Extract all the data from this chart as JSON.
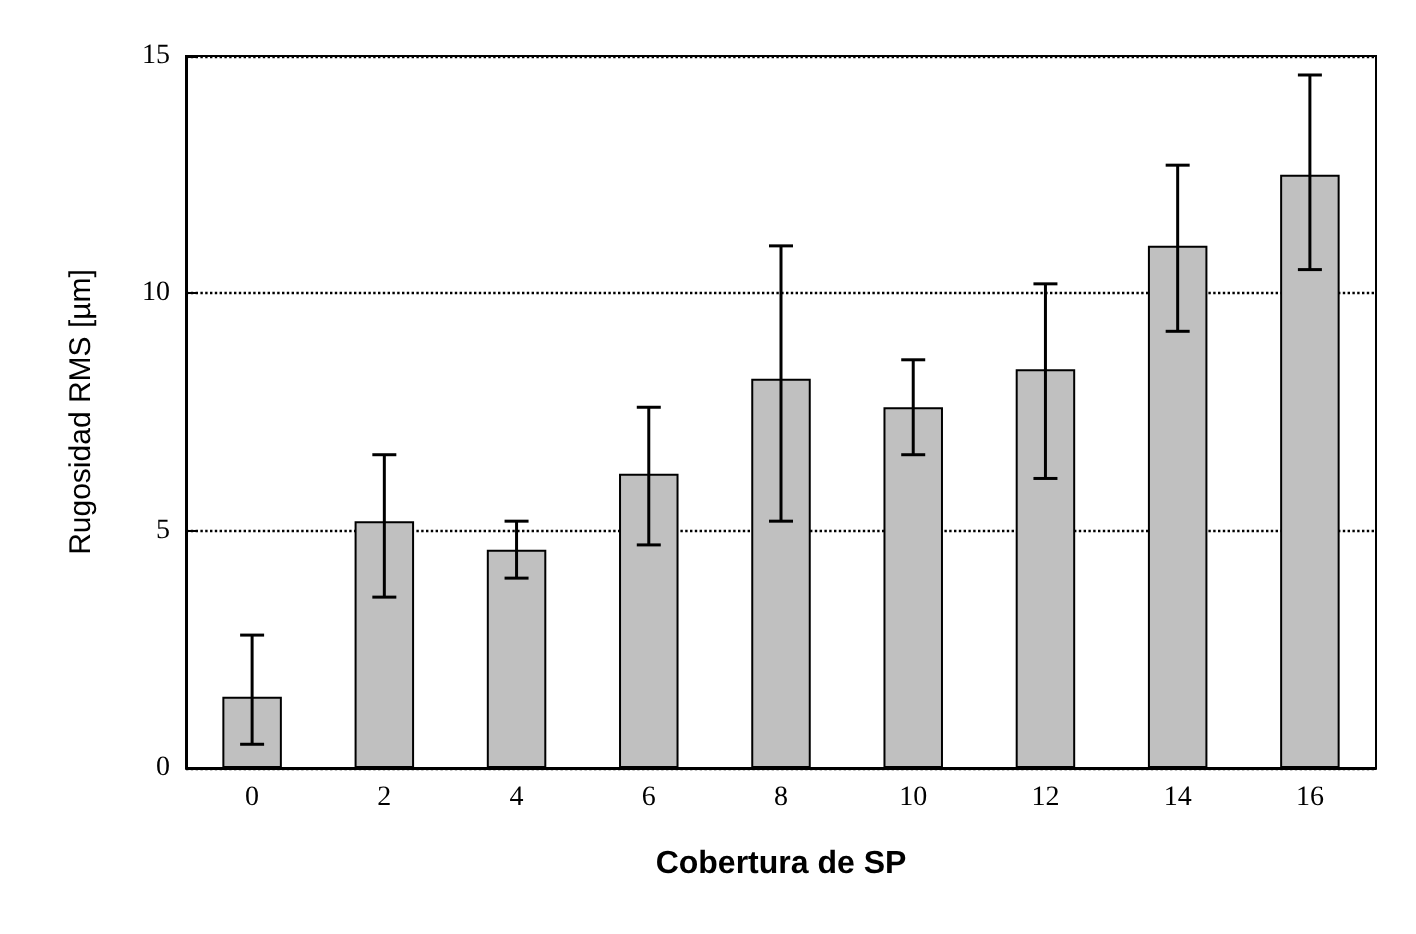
{
  "chart_data": {
    "type": "bar",
    "xlabel": "Cobertura de SP",
    "ylabel": "Rugosidad RMS [µm]",
    "categories": [
      "0",
      "2",
      "4",
      "6",
      "8",
      "10",
      "12",
      "14",
      "16"
    ],
    "values": [
      1.5,
      5.2,
      4.6,
      6.2,
      8.2,
      7.6,
      8.4,
      11.0,
      12.5
    ],
    "errors": [
      [
        0.5,
        2.8
      ],
      [
        3.6,
        6.6
      ],
      [
        4.0,
        5.2
      ],
      [
        4.7,
        7.6
      ],
      [
        5.2,
        11.0
      ],
      [
        6.6,
        8.6
      ],
      [
        6.1,
        10.2
      ],
      [
        9.2,
        12.7
      ],
      [
        10.5,
        14.6
      ]
    ],
    "color": "#c0c0c0",
    "ylim": [
      0,
      15
    ],
    "yticks": [
      0,
      5,
      10,
      15
    ],
    "grid": "y"
  }
}
